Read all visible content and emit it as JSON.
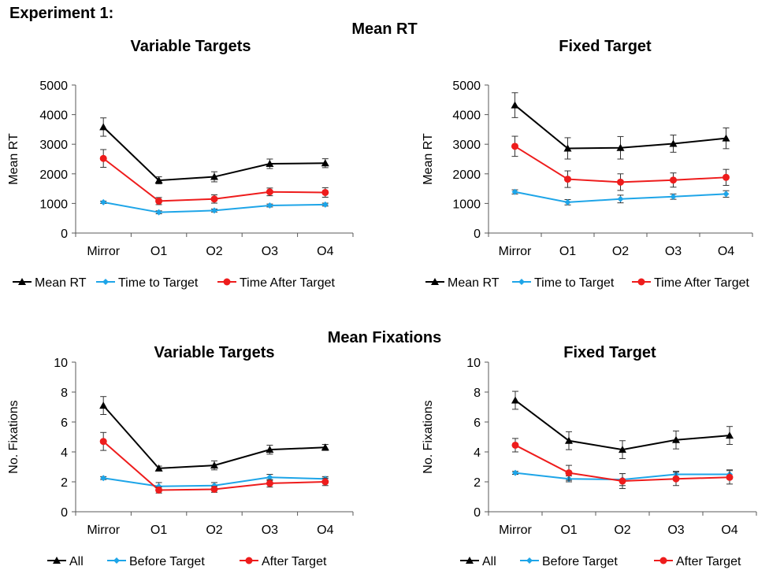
{
  "header": {
    "experiment": "Experiment 1:",
    "section_rt": "Mean RT",
    "section_fixations": "Mean Fixations"
  },
  "colors": {
    "black": "#000000",
    "blue": "#1ea5e8",
    "red": "#ee1c1c",
    "axis": "#595959"
  },
  "chart_data": [
    {
      "type": "line",
      "title": "Variable Targets",
      "ylabel": "Mean RT",
      "ylim": [
        0,
        5000
      ],
      "yticks": [
        0,
        1000,
        2000,
        3000,
        4000,
        5000
      ],
      "categories": [
        "Mirror",
        "O1",
        "O2",
        "O3",
        "O4"
      ],
      "series": [
        {
          "name": "Mean RT",
          "color": "#000000",
          "marker": "triangle",
          "values": [
            3580,
            1780,
            1900,
            2340,
            2360
          ],
          "errors": [
            310,
            120,
            170,
            160,
            150
          ]
        },
        {
          "name": "Time to Target",
          "color": "#1ea5e8",
          "marker": "diamond",
          "values": [
            1040,
            700,
            760,
            930,
            960
          ],
          "errors": [
            40,
            50,
            50,
            50,
            50
          ]
        },
        {
          "name": "Time After Target",
          "color": "#ee1c1c",
          "marker": "circle",
          "values": [
            2520,
            1080,
            1150,
            1390,
            1370
          ],
          "errors": [
            300,
            120,
            140,
            130,
            160
          ]
        }
      ],
      "legend": "bottom"
    },
    {
      "type": "line",
      "title": "Fixed Target",
      "ylabel": "Mean RT",
      "ylim": [
        0,
        5000
      ],
      "yticks": [
        0,
        1000,
        2000,
        3000,
        4000,
        5000
      ],
      "categories": [
        "Mirror",
        "O1",
        "O2",
        "O3",
        "O4"
      ],
      "series": [
        {
          "name": "Mean RT",
          "color": "#000000",
          "marker": "triangle",
          "values": [
            4320,
            2860,
            2880,
            3020,
            3200
          ],
          "errors": [
            420,
            360,
            380,
            290,
            350
          ]
        },
        {
          "name": "Time to Target",
          "color": "#1ea5e8",
          "marker": "diamond",
          "values": [
            1390,
            1040,
            1150,
            1230,
            1320
          ],
          "errors": [
            70,
            90,
            130,
            90,
            110
          ]
        },
        {
          "name": "Time After Target",
          "color": "#ee1c1c",
          "marker": "circle",
          "values": [
            2930,
            1820,
            1720,
            1790,
            1880
          ],
          "errors": [
            340,
            280,
            280,
            240,
            270
          ]
        }
      ],
      "legend": "bottom"
    },
    {
      "type": "line",
      "title": "Variable Targets",
      "ylabel": "No. Fixations",
      "ylim": [
        0,
        10
      ],
      "yticks": [
        0,
        2,
        4,
        6,
        8,
        10
      ],
      "categories": [
        "Mirror",
        "O1",
        "O2",
        "O3",
        "O4"
      ],
      "series": [
        {
          "name": "All",
          "color": "#000000",
          "marker": "triangle",
          "values": [
            7.1,
            2.9,
            3.1,
            4.15,
            4.3
          ],
          "errors": [
            0.6,
            0.15,
            0.3,
            0.3,
            0.2
          ]
        },
        {
          "name": "Before Target",
          "color": "#1ea5e8",
          "marker": "diamond",
          "values": [
            2.25,
            1.7,
            1.75,
            2.3,
            2.2
          ],
          "errors": [
            0.1,
            0.25,
            0.2,
            0.2,
            0.15
          ]
        },
        {
          "name": "After Target",
          "color": "#ee1c1c",
          "marker": "circle",
          "values": [
            4.7,
            1.45,
            1.5,
            1.9,
            2.0
          ],
          "errors": [
            0.6,
            0.2,
            0.2,
            0.25,
            0.25
          ]
        }
      ],
      "legend": "bottom"
    },
    {
      "type": "line",
      "title": "Fixed Target",
      "ylabel": "No. Fixations",
      "ylim": [
        0,
        10
      ],
      "yticks": [
        0,
        2,
        4,
        6,
        8,
        10
      ],
      "categories": [
        "Mirror",
        "O1",
        "O2",
        "O3",
        "O4"
      ],
      "series": [
        {
          "name": "All",
          "color": "#000000",
          "marker": "triangle",
          "values": [
            7.45,
            4.75,
            4.15,
            4.8,
            5.1
          ],
          "errors": [
            0.6,
            0.6,
            0.6,
            0.6,
            0.6
          ]
        },
        {
          "name": "Before Target",
          "color": "#1ea5e8",
          "marker": "diamond",
          "values": [
            2.6,
            2.2,
            2.15,
            2.5,
            2.5
          ],
          "errors": [
            0.1,
            0.2,
            0.4,
            0.2,
            0.3
          ]
        },
        {
          "name": "After Target",
          "color": "#ee1c1c",
          "marker": "circle",
          "values": [
            4.45,
            2.6,
            2.05,
            2.2,
            2.3
          ],
          "errors": [
            0.45,
            0.5,
            0.5,
            0.45,
            0.45
          ]
        }
      ],
      "legend": "bottom"
    }
  ]
}
